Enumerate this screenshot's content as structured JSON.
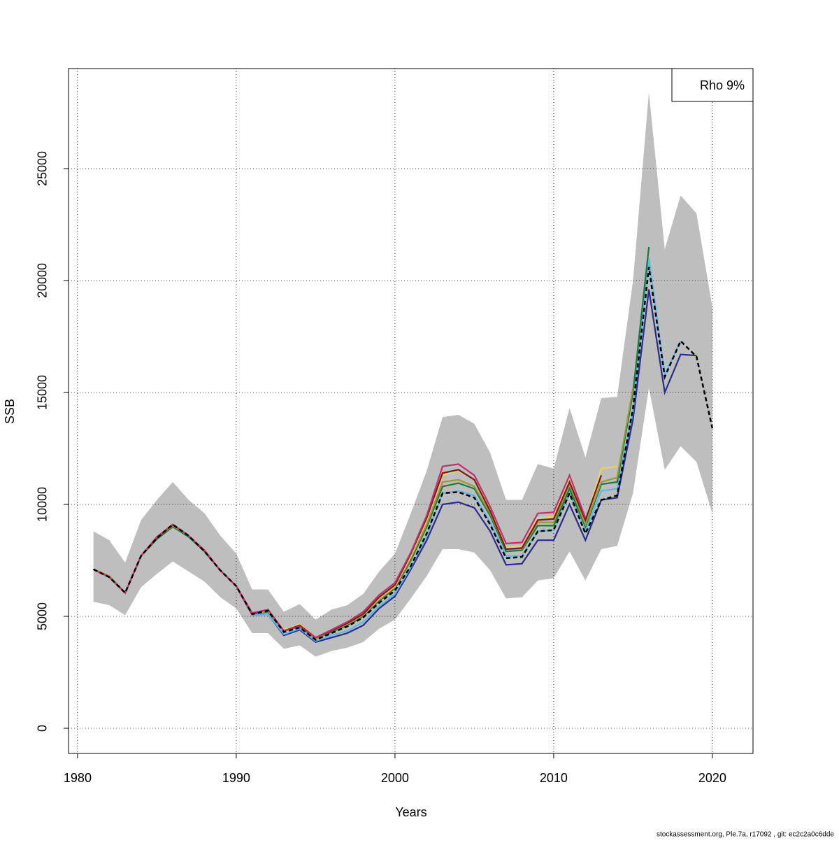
{
  "chart_data": {
    "type": "line",
    "x_label": "Years",
    "y_label": "SSB",
    "annotation": "Rho 9%",
    "footnote": "stockassessment.org, Ple.7a, r17092 , git: ec2c2a0c6dde",
    "x": [
      1981,
      1982,
      1983,
      1984,
      1985,
      1986,
      1987,
      1988,
      1989,
      1990,
      1991,
      1992,
      1993,
      1994,
      1995,
      1996,
      1997,
      1998,
      1999,
      2000,
      2001,
      2002,
      2003,
      2004,
      2005,
      2006,
      2007,
      2008,
      2009,
      2010,
      2011,
      2012,
      2013,
      2014,
      2015,
      2016,
      2017,
      2018,
      2019,
      2020
    ],
    "band": {
      "color": "#bebebe",
      "upper": [
        8800,
        8400,
        7400,
        9300,
        10200,
        11000,
        10200,
        9600,
        8600,
        7800,
        6200,
        6200,
        5200,
        5550,
        4850,
        5300,
        5500,
        6000,
        7000,
        7800,
        9600,
        11500,
        13900,
        14000,
        13600,
        12300,
        10200,
        10200,
        11800,
        11600,
        14300,
        12100,
        14750,
        14800,
        20000,
        28400,
        21400,
        23800,
        23000,
        18800
      ],
      "lower": [
        5650,
        5500,
        5050,
        6300,
        6900,
        7450,
        7000,
        6550,
        5850,
        5350,
        4250,
        4250,
        3550,
        3700,
        3200,
        3450,
        3600,
        3850,
        4450,
        4850,
        5800,
        6800,
        8000,
        8000,
        7850,
        7050,
        5800,
        5850,
        6600,
        6700,
        7900,
        6600,
        8000,
        8150,
        10500,
        15200,
        11550,
        12600,
        11900,
        9600
      ]
    },
    "series": [
      {
        "color": "#2b2b8c",
        "values": [
          7100,
          6750,
          6050,
          7700,
          8500,
          9100,
          8600,
          7900,
          7050,
          6350,
          5050,
          5100,
          4150,
          4400,
          3850,
          4050,
          4250,
          4600,
          5350,
          5900,
          7100,
          8400,
          10000,
          10100,
          9850,
          8800,
          7300,
          7350,
          8400,
          8400,
          10000,
          8400,
          10200,
          10300,
          13800,
          19600,
          15000,
          16700,
          16650,
          null
        ]
      },
      {
        "color": "#5bb8e8",
        "values": [
          7100,
          6750,
          6050,
          7700,
          8500,
          9100,
          8600,
          7900,
          7050,
          6350,
          5050,
          5100,
          4200,
          4450,
          3900,
          4150,
          4350,
          4750,
          5450,
          6000,
          7200,
          8600,
          10500,
          10600,
          10400,
          9200,
          7700,
          7700,
          8800,
          8850,
          10500,
          8800,
          10600,
          10700,
          14200,
          21000,
          15800,
          17300,
          null,
          null
        ]
      },
      {
        "color": "#1a7a3a",
        "values": [
          7100,
          6800,
          6050,
          7700,
          8450,
          9000,
          8550,
          7900,
          7050,
          6350,
          5100,
          5200,
          4350,
          4550,
          4000,
          4300,
          4600,
          5000,
          5700,
          6250,
          7500,
          9000,
          10800,
          10950,
          10700,
          9500,
          7900,
          7950,
          9050,
          9050,
          10700,
          9000,
          10900,
          11000,
          15000,
          21500,
          null,
          null,
          null,
          null
        ]
      },
      {
        "color": "#9a9a3a",
        "values": [
          7100,
          6800,
          6050,
          7700,
          8500,
          9050,
          8600,
          7900,
          7050,
          6350,
          5100,
          5250,
          4350,
          4600,
          4000,
          4350,
          4650,
          5050,
          5750,
          6300,
          7600,
          9100,
          11000,
          11100,
          10800,
          9600,
          8000,
          8000,
          9200,
          9200,
          10900,
          9100,
          11000,
          11200,
          15200,
          null,
          null,
          null,
          null,
          null
        ]
      },
      {
        "color": "#e8d070",
        "values": [
          7100,
          6750,
          6050,
          7700,
          8500,
          9100,
          8600,
          7900,
          7050,
          6350,
          5100,
          5250,
          4400,
          4650,
          4050,
          4350,
          4700,
          5100,
          5800,
          6350,
          7700,
          9300,
          11300,
          11500,
          11100,
          9800,
          8100,
          8100,
          9400,
          9450,
          11100,
          9300,
          11600,
          11700,
          null,
          null,
          null,
          null,
          null,
          null
        ]
      },
      {
        "color": "#7a1a1a",
        "values": [
          7100,
          6750,
          6050,
          7700,
          8500,
          9100,
          8600,
          7900,
          7050,
          6350,
          5100,
          5300,
          4350,
          4600,
          4050,
          4350,
          4700,
          5100,
          5850,
          6400,
          7800,
          9400,
          11400,
          11550,
          11100,
          9700,
          8000,
          8050,
          9300,
          9350,
          11000,
          9300,
          11300,
          null,
          null,
          null,
          null,
          null,
          null,
          null
        ]
      },
      {
        "color": "#c0306a",
        "values": [
          7100,
          6750,
          6050,
          7700,
          8550,
          9100,
          8600,
          7950,
          7050,
          6350,
          5150,
          5300,
          4350,
          4550,
          4050,
          4400,
          4750,
          5200,
          5950,
          6500,
          7850,
          9500,
          11700,
          11800,
          11300,
          9900,
          8250,
          8300,
          9600,
          9650,
          11300,
          9400,
          null,
          null,
          null,
          null,
          null,
          null,
          null,
          null
        ]
      },
      {
        "color": "#000000",
        "dashed": true,
        "values": [
          7100,
          6750,
          6050,
          7700,
          8500,
          9100,
          8600,
          7900,
          7050,
          6350,
          5100,
          5250,
          4300,
          4500,
          3950,
          4250,
          4550,
          4950,
          5600,
          6150,
          7250,
          8700,
          10500,
          10550,
          10300,
          9100,
          7600,
          7650,
          8800,
          8850,
          10500,
          8700,
          10200,
          10400,
          14300,
          20600,
          15700,
          17300,
          16600,
          13400
        ]
      }
    ],
    "xlim": [
      1979.43,
      2022.56
    ],
    "ylim": [
      -1125,
      29469
    ],
    "xticks": [
      1980,
      1990,
      2000,
      2010,
      2020
    ],
    "yticks": [
      0,
      5000,
      10000,
      15000,
      20000,
      25000
    ],
    "grid": true,
    "legend_position": "top-right"
  }
}
